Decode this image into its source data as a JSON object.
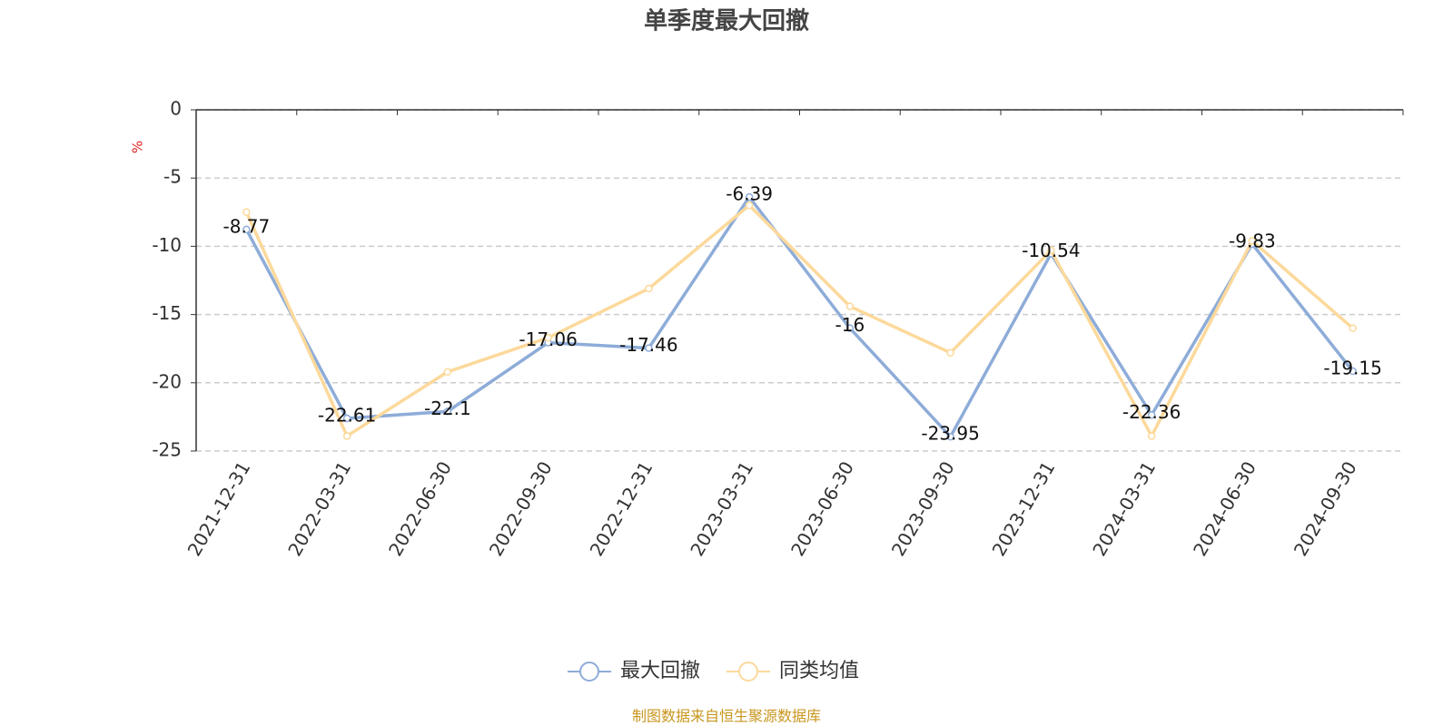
{
  "chart_data": {
    "type": "line",
    "title": "单季度最大回撤",
    "y_label": "%",
    "categories": [
      "2021-12-31",
      "2022-03-31",
      "2022-06-30",
      "2022-09-30",
      "2022-12-31",
      "2023-03-31",
      "2023-06-30",
      "2023-09-30",
      "2023-12-31",
      "2024-03-31",
      "2024-06-30",
      "2024-09-30"
    ],
    "series": [
      {
        "name": "最大回撤",
        "color": "#8eacd8",
        "values": [
          -8.77,
          -22.61,
          -22.1,
          -17.06,
          -17.46,
          -6.39,
          -16,
          -23.95,
          -10.54,
          -22.36,
          -9.83,
          -19.15
        ]
      },
      {
        "name": "同类均值",
        "color": "#fcd99b",
        "values": [
          -7.5,
          -23.9,
          -19.2,
          -16.7,
          -13.1,
          -7.0,
          -14.4,
          -17.8,
          -10.3,
          -23.9,
          -9.6,
          -16.0
        ]
      }
    ],
    "ylim": [
      -25,
      0
    ],
    "yticks": [
      0,
      -5,
      -10,
      -15,
      -20,
      -25
    ],
    "grid": true,
    "source": "制图数据来自恒生聚源数据库"
  }
}
